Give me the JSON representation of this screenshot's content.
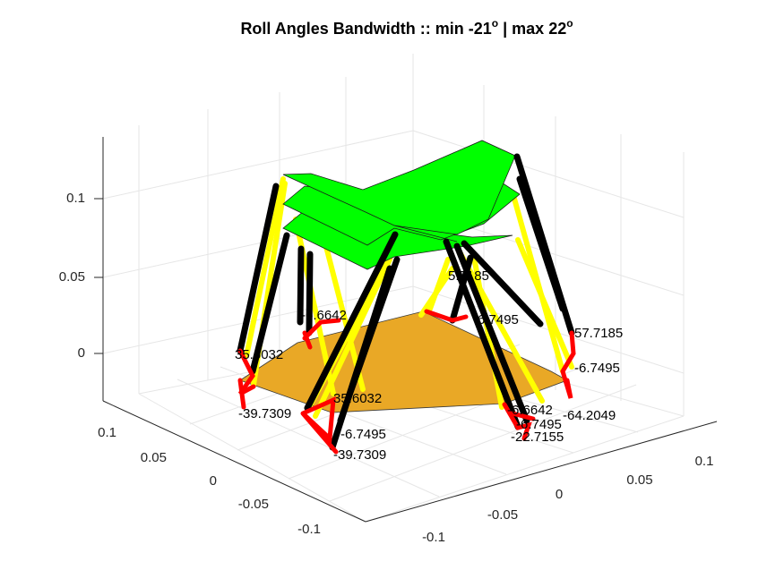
{
  "figure": {
    "title": {
      "main": "Roll Angles Bandwidth :: min -21",
      "deg1": "o",
      "mid": " | max 22",
      "deg2": "o"
    },
    "z_ticks": [
      "0.1",
      "0.05",
      "0"
    ],
    "y_ticks": [
      "0.1",
      "0.05",
      "0",
      "-0.05",
      "-0.1"
    ],
    "x_ticks": [
      "-0.1",
      "-0.05",
      "0",
      "0.05",
      "0.1"
    ],
    "annotations": [
      "5.7185",
      "-6.7495",
      "-6.6642",
      "57.7185",
      "-6.7495",
      "35.6032",
      "-39.7309",
      "35.6032",
      "-6.7495",
      "-39.7309",
      "-6.6642",
      "-6.7495",
      "-64.2049",
      "-22.7155"
    ],
    "colors": {
      "platform": "#00ff00",
      "base": "#e9a826",
      "leg_dark": "#000000",
      "leg_light": "#ffff00",
      "joint": "#ff0000"
    }
  }
}
